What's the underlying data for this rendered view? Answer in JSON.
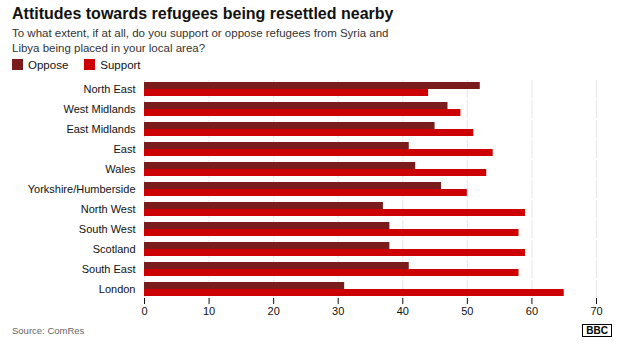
{
  "chart_data": {
    "type": "bar",
    "orientation": "horizontal",
    "title": "Attitudes towards refugees being resettled nearby",
    "subtitle": "To what extent, if at all, do you support or oppose refugees from Syria and\nLibya being placed in your local area?",
    "source": "Source: ComRes",
    "annotations": [
      "BBC"
    ],
    "categories": [
      "North East",
      "West Midlands",
      "East Midlands",
      "East",
      "Wales",
      "Yorkshire/Humberside",
      "North West",
      "South West",
      "Scotland",
      "South East",
      "London"
    ],
    "series": [
      {
        "name": "Oppose",
        "color": "#7b1c1c",
        "values": [
          52,
          47,
          45,
          41,
          42,
          46,
          37,
          38,
          38,
          41,
          31
        ]
      },
      {
        "name": "Support",
        "color": "#cc0000",
        "values": [
          44,
          49,
          51,
          54,
          53,
          50,
          59,
          58,
          59,
          58,
          65
        ]
      }
    ],
    "xlim": [
      0,
      70
    ],
    "xticks": [
      0,
      10,
      20,
      30,
      40,
      50,
      60,
      70
    ],
    "grid": true,
    "legend": "upper left"
  }
}
